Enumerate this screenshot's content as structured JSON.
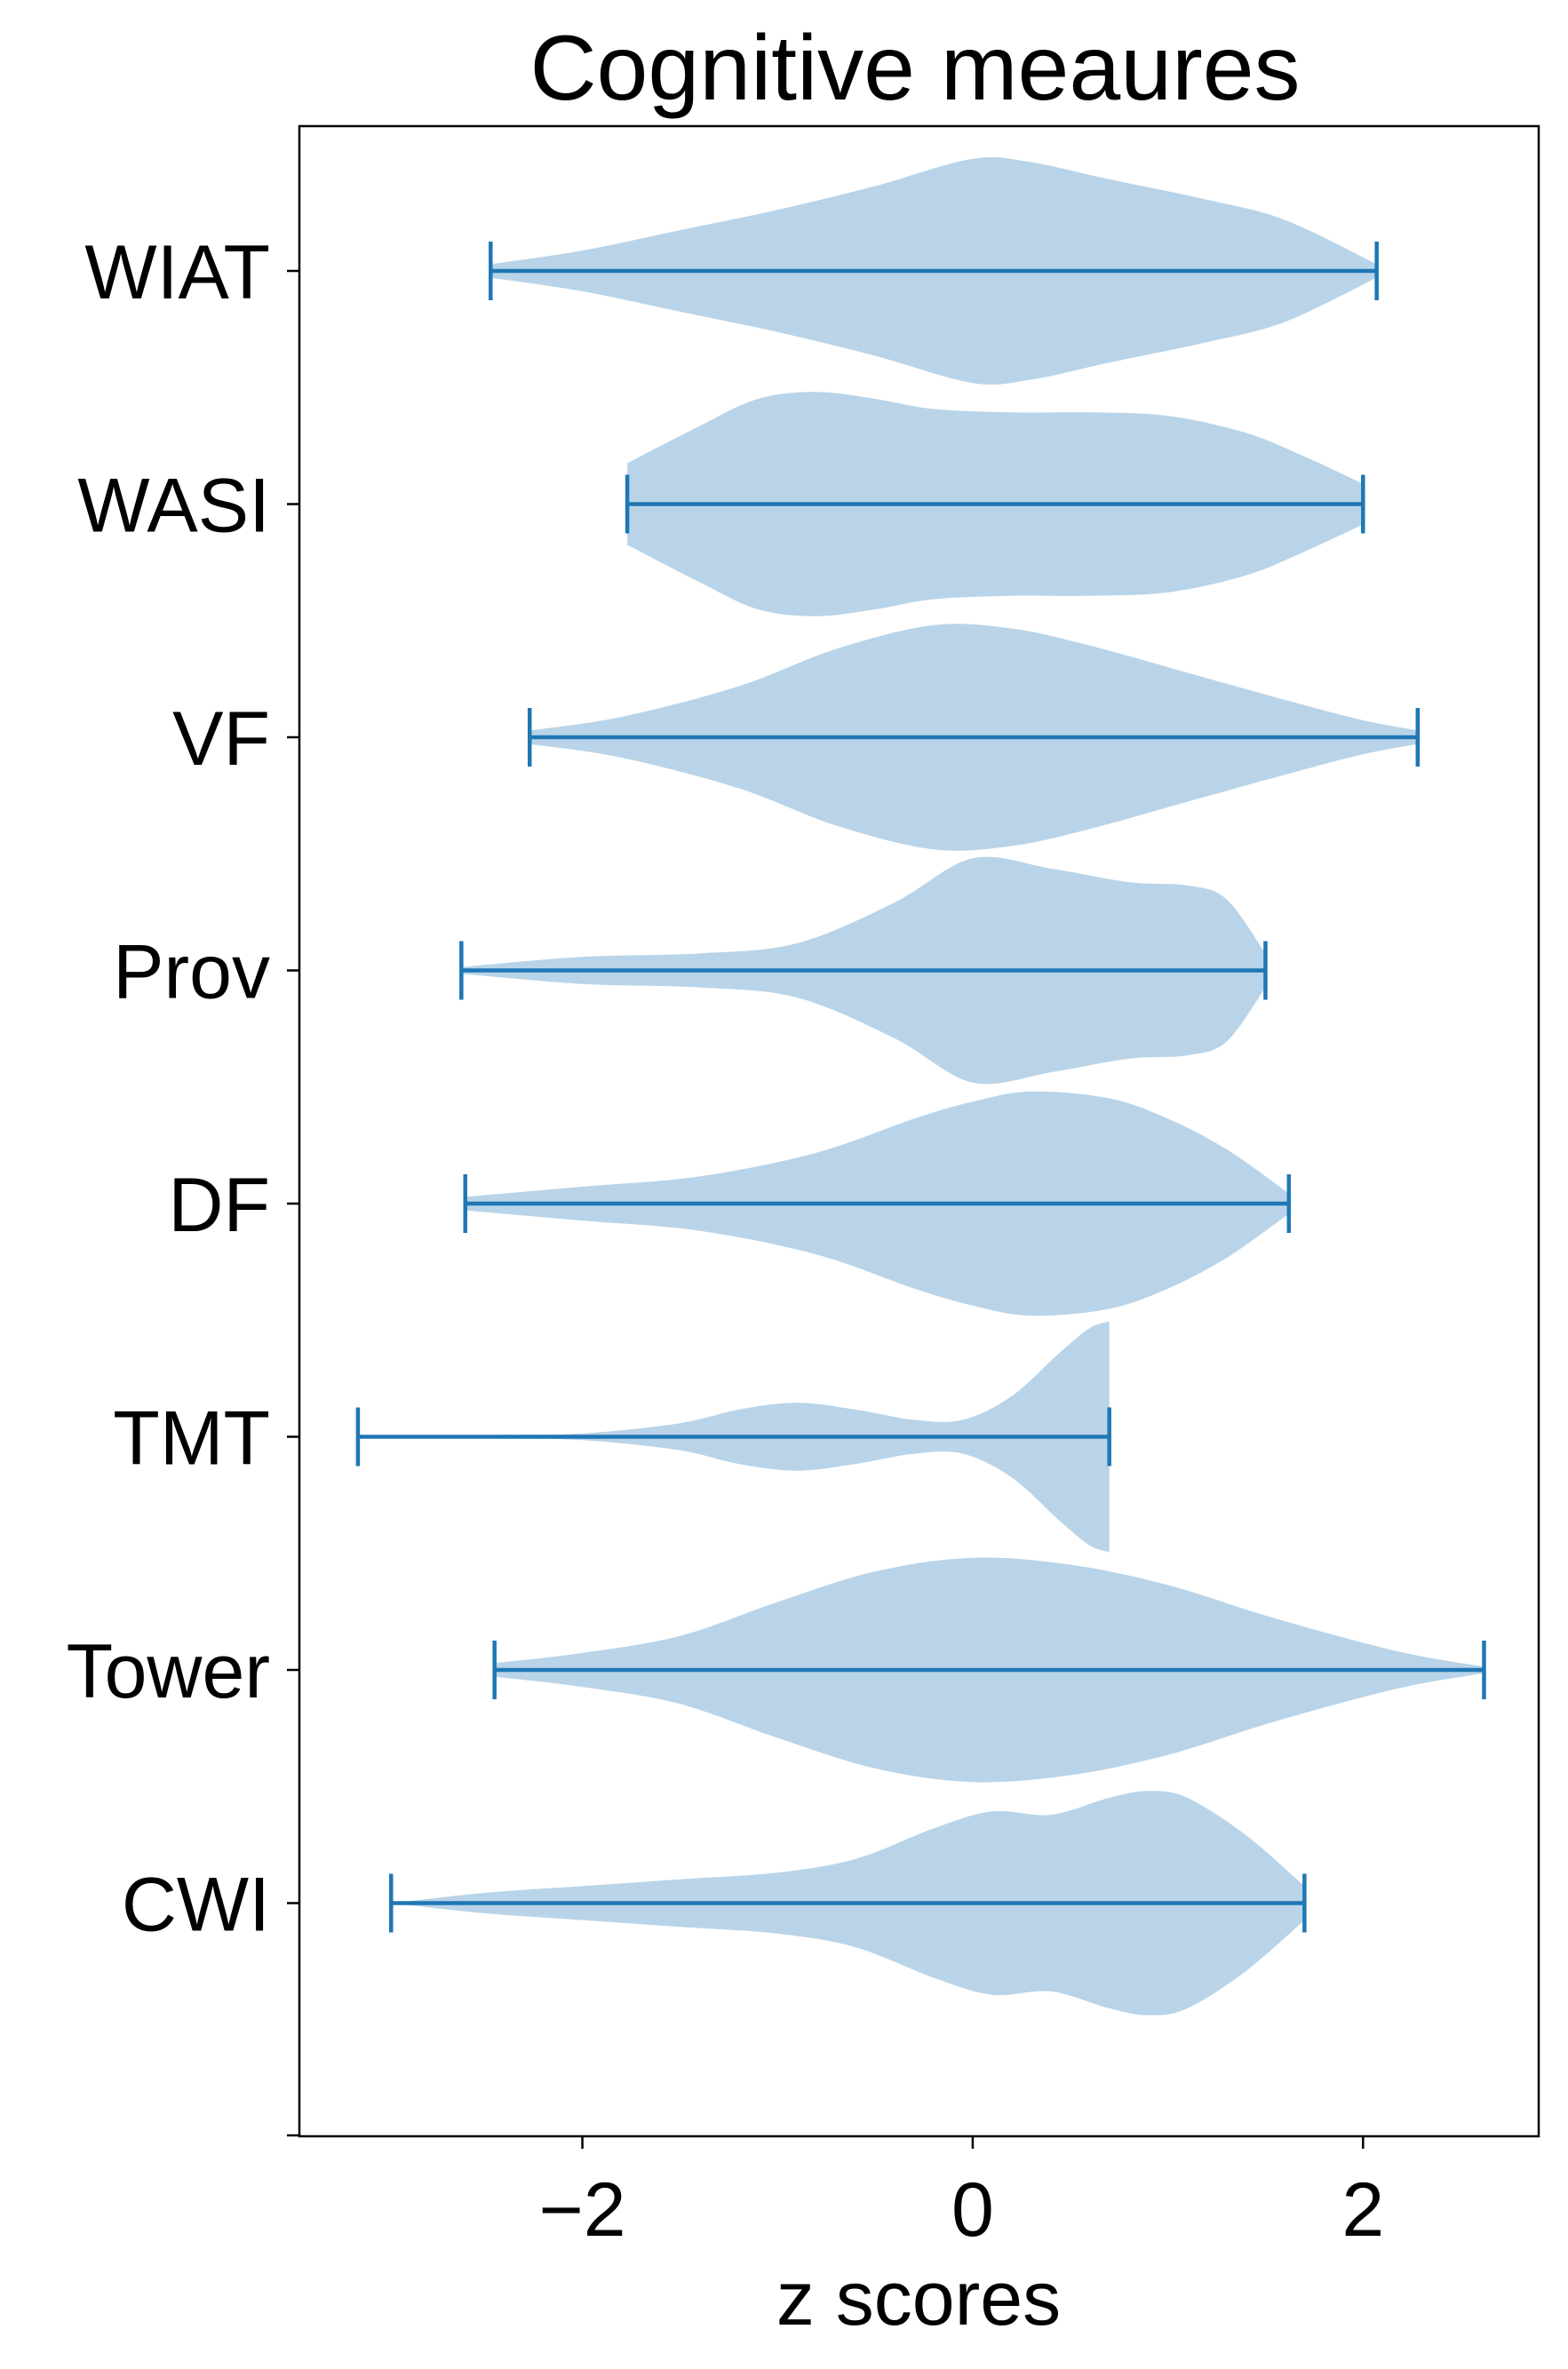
{
  "chart_data": {
    "type": "violin",
    "title": "Cognitive meaures",
    "xlabel": "z scores",
    "ylabel": "",
    "xlim": [
      -3.45,
      2.9
    ],
    "xticks": [
      -2,
      0,
      2
    ],
    "xtick_labels": [
      "−2",
      "0",
      "2"
    ],
    "categories": [
      "WIAT",
      "WASI",
      "VF",
      "Prov",
      "DF",
      "TMT",
      "Tower",
      "CWI"
    ],
    "colors": {
      "body": "#b9d4e8",
      "line": "#1f77b4",
      "axis": "#000000"
    },
    "grid": false,
    "violins": [
      {
        "label": "WIAT",
        "min": -2.47,
        "max": 2.07,
        "density": [
          [
            -2.47,
            0.02
          ],
          [
            -2.0,
            0.06
          ],
          [
            -1.5,
            0.12
          ],
          [
            -1.0,
            0.18
          ],
          [
            -0.5,
            0.25
          ],
          [
            0.0,
            0.33
          ],
          [
            0.3,
            0.32
          ],
          [
            0.7,
            0.27
          ],
          [
            1.2,
            0.21
          ],
          [
            1.6,
            0.15
          ],
          [
            2.07,
            0.02
          ]
        ]
      },
      {
        "label": "WASI",
        "min": -1.77,
        "max": 2.0,
        "density": [
          [
            -1.77,
            0.12
          ],
          [
            -1.4,
            0.23
          ],
          [
            -1.1,
            0.31
          ],
          [
            -0.8,
            0.33
          ],
          [
            -0.5,
            0.31
          ],
          [
            -0.2,
            0.28
          ],
          [
            0.2,
            0.27
          ],
          [
            0.6,
            0.27
          ],
          [
            1.0,
            0.26
          ],
          [
            1.4,
            0.21
          ],
          [
            1.7,
            0.14
          ],
          [
            2.0,
            0.06
          ]
        ]
      },
      {
        "label": "VF",
        "min": -2.27,
        "max": 2.28,
        "density": [
          [
            -2.27,
            0.02
          ],
          [
            -1.8,
            0.06
          ],
          [
            -1.2,
            0.15
          ],
          [
            -0.7,
            0.26
          ],
          [
            -0.2,
            0.33
          ],
          [
            0.2,
            0.32
          ],
          [
            0.6,
            0.27
          ],
          [
            1.1,
            0.19
          ],
          [
            1.6,
            0.11
          ],
          [
            2.0,
            0.05
          ],
          [
            2.28,
            0.02
          ]
        ]
      },
      {
        "label": "Prov",
        "min": -2.62,
        "max": 1.5,
        "density": [
          [
            -2.62,
            0.01
          ],
          [
            -2.0,
            0.04
          ],
          [
            -1.4,
            0.05
          ],
          [
            -0.9,
            0.08
          ],
          [
            -0.4,
            0.2
          ],
          [
            0.0,
            0.33
          ],
          [
            0.4,
            0.3
          ],
          [
            0.8,
            0.26
          ],
          [
            1.1,
            0.25
          ],
          [
            1.3,
            0.21
          ],
          [
            1.5,
            0.05
          ]
        ]
      },
      {
        "label": "DF",
        "min": -2.6,
        "max": 1.62,
        "density": [
          [
            -2.6,
            0.02
          ],
          [
            -2.0,
            0.05
          ],
          [
            -1.4,
            0.08
          ],
          [
            -0.8,
            0.15
          ],
          [
            -0.3,
            0.25
          ],
          [
            0.0,
            0.3
          ],
          [
            0.3,
            0.33
          ],
          [
            0.7,
            0.31
          ],
          [
            1.0,
            0.25
          ],
          [
            1.3,
            0.16
          ],
          [
            1.62,
            0.03
          ]
        ]
      },
      {
        "label": "TMT",
        "min": -3.15,
        "max": 0.7,
        "density": [
          [
            -3.15,
            0.0
          ],
          [
            -2.5,
            0.005
          ],
          [
            -2.0,
            0.01
          ],
          [
            -1.5,
            0.04
          ],
          [
            -1.2,
            0.08
          ],
          [
            -0.9,
            0.1
          ],
          [
            -0.6,
            0.08
          ],
          [
            -0.3,
            0.05
          ],
          [
            -0.05,
            0.05
          ],
          [
            0.2,
            0.12
          ],
          [
            0.45,
            0.25
          ],
          [
            0.6,
            0.32
          ],
          [
            0.7,
            0.34
          ]
        ]
      },
      {
        "label": "Tower",
        "min": -2.45,
        "max": 2.62,
        "density": [
          [
            -2.45,
            0.02
          ],
          [
            -2.0,
            0.05
          ],
          [
            -1.5,
            0.1
          ],
          [
            -1.0,
            0.2
          ],
          [
            -0.5,
            0.29
          ],
          [
            0.0,
            0.33
          ],
          [
            0.5,
            0.31
          ],
          [
            1.0,
            0.25
          ],
          [
            1.5,
            0.16
          ],
          [
            2.0,
            0.08
          ],
          [
            2.3,
            0.04
          ],
          [
            2.62,
            0.01
          ]
        ]
      },
      {
        "label": "CWI",
        "min": -2.98,
        "max": 1.7,
        "density": [
          [
            -2.98,
            0.0
          ],
          [
            -2.5,
            0.03
          ],
          [
            -2.0,
            0.05
          ],
          [
            -1.5,
            0.07
          ],
          [
            -1.0,
            0.09
          ],
          [
            -0.6,
            0.13
          ],
          [
            -0.2,
            0.22
          ],
          [
            0.1,
            0.27
          ],
          [
            0.4,
            0.26
          ],
          [
            0.7,
            0.31
          ],
          [
            0.9,
            0.33
          ],
          [
            1.1,
            0.31
          ],
          [
            1.4,
            0.2
          ],
          [
            1.7,
            0.05
          ]
        ]
      }
    ]
  }
}
